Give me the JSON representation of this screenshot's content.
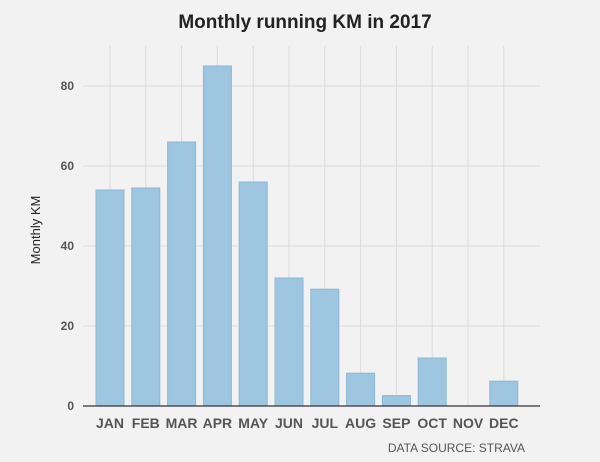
{
  "chart_data": {
    "type": "bar",
    "title": "Monthly running KM in 2017",
    "xlabel": "",
    "ylabel": "Monthly KM",
    "categories": [
      "JAN",
      "FEB",
      "MAR",
      "APR",
      "MAY",
      "JUN",
      "JUL",
      "AUG",
      "SEP",
      "OCT",
      "NOV",
      "DEC"
    ],
    "values": [
      54,
      54.5,
      66,
      85,
      56,
      32,
      29.2,
      8.2,
      2.6,
      12,
      0,
      6.2
    ],
    "ylim": [
      0,
      90
    ],
    "yticks": [
      0,
      20,
      40,
      60,
      80
    ],
    "grid": true,
    "colors": {
      "bar": "#9fc6e0",
      "bar_edge": "#8bb8d6",
      "grid": "#dcdcdc",
      "axis": "#333333"
    },
    "annotations": [
      "DATA SOURCE: STRAVA"
    ]
  }
}
